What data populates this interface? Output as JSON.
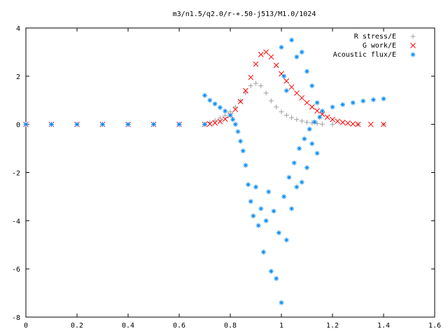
{
  "chart_data": {
    "type": "scatter",
    "title": "m3/n1.5/q2.0/r-+.50-j513/M1.0/1024",
    "xlabel": "",
    "ylabel": "",
    "xlim": [
      0,
      1.6
    ],
    "ylim": [
      -8,
      4
    ],
    "x_ticks": [
      "0",
      "0.2",
      "0.4",
      "0.6",
      "0.8",
      "1",
      "1.2",
      "1.4",
      "1.6"
    ],
    "y_ticks": [
      "4",
      "2",
      "0",
      "-2",
      "-4",
      "-6",
      "-8"
    ],
    "grid": false,
    "legend_position": "top-right",
    "series": [
      {
        "name": "R stress/E",
        "marker": "+",
        "color": "#a0a0a0",
        "points": [
          [
            0.0,
            0
          ],
          [
            0.1,
            0
          ],
          [
            0.2,
            0
          ],
          [
            0.3,
            0
          ],
          [
            0.4,
            0
          ],
          [
            0.5,
            0
          ],
          [
            0.6,
            0
          ],
          [
            0.7,
            0
          ],
          [
            0.72,
            0.08
          ],
          [
            0.74,
            0.16
          ],
          [
            0.76,
            0.26
          ],
          [
            0.78,
            0.37
          ],
          [
            0.8,
            0.52
          ],
          [
            0.82,
            0.72
          ],
          [
            0.84,
            0.98
          ],
          [
            0.86,
            1.3
          ],
          [
            0.88,
            1.6
          ],
          [
            0.9,
            1.7
          ],
          [
            0.92,
            1.6
          ],
          [
            0.94,
            1.3
          ],
          [
            0.96,
            0.98
          ],
          [
            0.98,
            0.72
          ],
          [
            1.0,
            0.52
          ],
          [
            1.02,
            0.38
          ],
          [
            1.04,
            0.28
          ],
          [
            1.06,
            0.2
          ],
          [
            1.08,
            0.14
          ],
          [
            1.1,
            0.09
          ],
          [
            1.12,
            0.06
          ],
          [
            1.14,
            0.03
          ],
          [
            1.16,
            0.01
          ],
          [
            1.2,
            0
          ],
          [
            1.3,
            0
          ],
          [
            1.4,
            0
          ]
        ]
      },
      {
        "name": "G work/E",
        "marker": "x",
        "color": "#ff0000",
        "points": [
          [
            0.0,
            0
          ],
          [
            0.1,
            0
          ],
          [
            0.2,
            0
          ],
          [
            0.3,
            0
          ],
          [
            0.4,
            0
          ],
          [
            0.5,
            0
          ],
          [
            0.6,
            0
          ],
          [
            0.7,
            0
          ],
          [
            0.72,
            0.02
          ],
          [
            0.74,
            0.06
          ],
          [
            0.76,
            0.12
          ],
          [
            0.78,
            0.22
          ],
          [
            0.8,
            0.38
          ],
          [
            0.82,
            0.62
          ],
          [
            0.84,
            0.95
          ],
          [
            0.86,
            1.4
          ],
          [
            0.88,
            1.95
          ],
          [
            0.9,
            2.5
          ],
          [
            0.92,
            2.9
          ],
          [
            0.94,
            3.0
          ],
          [
            0.96,
            2.8
          ],
          [
            0.98,
            2.45
          ],
          [
            1.0,
            2.1
          ],
          [
            1.02,
            1.8
          ],
          [
            1.04,
            1.55
          ],
          [
            1.06,
            1.3
          ],
          [
            1.08,
            1.1
          ],
          [
            1.1,
            0.9
          ],
          [
            1.12,
            0.72
          ],
          [
            1.14,
            0.56
          ],
          [
            1.16,
            0.42
          ],
          [
            1.18,
            0.3
          ],
          [
            1.2,
            0.2
          ],
          [
            1.22,
            0.13
          ],
          [
            1.24,
            0.08
          ],
          [
            1.26,
            0.05
          ],
          [
            1.28,
            0.02
          ],
          [
            1.3,
            0
          ],
          [
            1.35,
            0
          ],
          [
            1.4,
            0
          ]
        ]
      },
      {
        "name": "Acoustic flux/E",
        "marker": "*",
        "color": "#0a8cf0",
        "points": [
          [
            0.0,
            0
          ],
          [
            0.1,
            0
          ],
          [
            0.2,
            0
          ],
          [
            0.3,
            0
          ],
          [
            0.4,
            0
          ],
          [
            0.5,
            0
          ],
          [
            0.6,
            0
          ],
          [
            0.7,
            0
          ],
          [
            0.7,
            1.2
          ],
          [
            0.72,
            1.0
          ],
          [
            0.74,
            0.85
          ],
          [
            0.76,
            0.7
          ],
          [
            0.78,
            0.55
          ],
          [
            0.8,
            0.38
          ],
          [
            0.81,
            0.2
          ],
          [
            0.82,
            0.0
          ],
          [
            0.83,
            -0.3
          ],
          [
            0.84,
            -0.7
          ],
          [
            0.85,
            -1.1
          ],
          [
            0.86,
            -1.7
          ],
          [
            0.87,
            -2.5
          ],
          [
            0.88,
            -3.2
          ],
          [
            0.89,
            -3.8
          ],
          [
            0.9,
            -2.6
          ],
          [
            0.91,
            -4.2
          ],
          [
            0.92,
            -3.5
          ],
          [
            0.93,
            -5.3
          ],
          [
            0.94,
            -4.0
          ],
          [
            0.95,
            -2.8
          ],
          [
            0.96,
            -6.1
          ],
          [
            0.97,
            -3.6
          ],
          [
            0.98,
            -6.4
          ],
          [
            0.99,
            -4.5
          ],
          [
            1.0,
            -7.4
          ],
          [
            1.01,
            -3.0
          ],
          [
            1.02,
            -4.8
          ],
          [
            1.03,
            -2.2
          ],
          [
            1.04,
            -3.5
          ],
          [
            1.05,
            -1.6
          ],
          [
            1.06,
            -2.6
          ],
          [
            1.07,
            -1.0
          ],
          [
            1.08,
            -2.4
          ],
          [
            1.09,
            -0.6
          ],
          [
            1.1,
            -1.8
          ],
          [
            1.11,
            -0.2
          ],
          [
            1.12,
            -0.8
          ],
          [
            1.13,
            0.1
          ],
          [
            1.14,
            -1.2
          ],
          [
            1.15,
            0.3
          ],
          [
            1.0,
            3.2
          ],
          [
            1.01,
            2.0
          ],
          [
            1.02,
            1.4
          ],
          [
            1.04,
            3.5
          ],
          [
            1.06,
            2.8
          ],
          [
            1.08,
            3.0
          ],
          [
            1.1,
            2.2
          ],
          [
            1.12,
            1.6
          ],
          [
            1.14,
            0.9
          ],
          [
            1.16,
            0.55
          ],
          [
            1.2,
            0.72
          ],
          [
            1.24,
            0.82
          ],
          [
            1.28,
            0.9
          ],
          [
            1.32,
            0.97
          ],
          [
            1.36,
            1.02
          ],
          [
            1.4,
            1.06
          ]
        ]
      }
    ]
  }
}
